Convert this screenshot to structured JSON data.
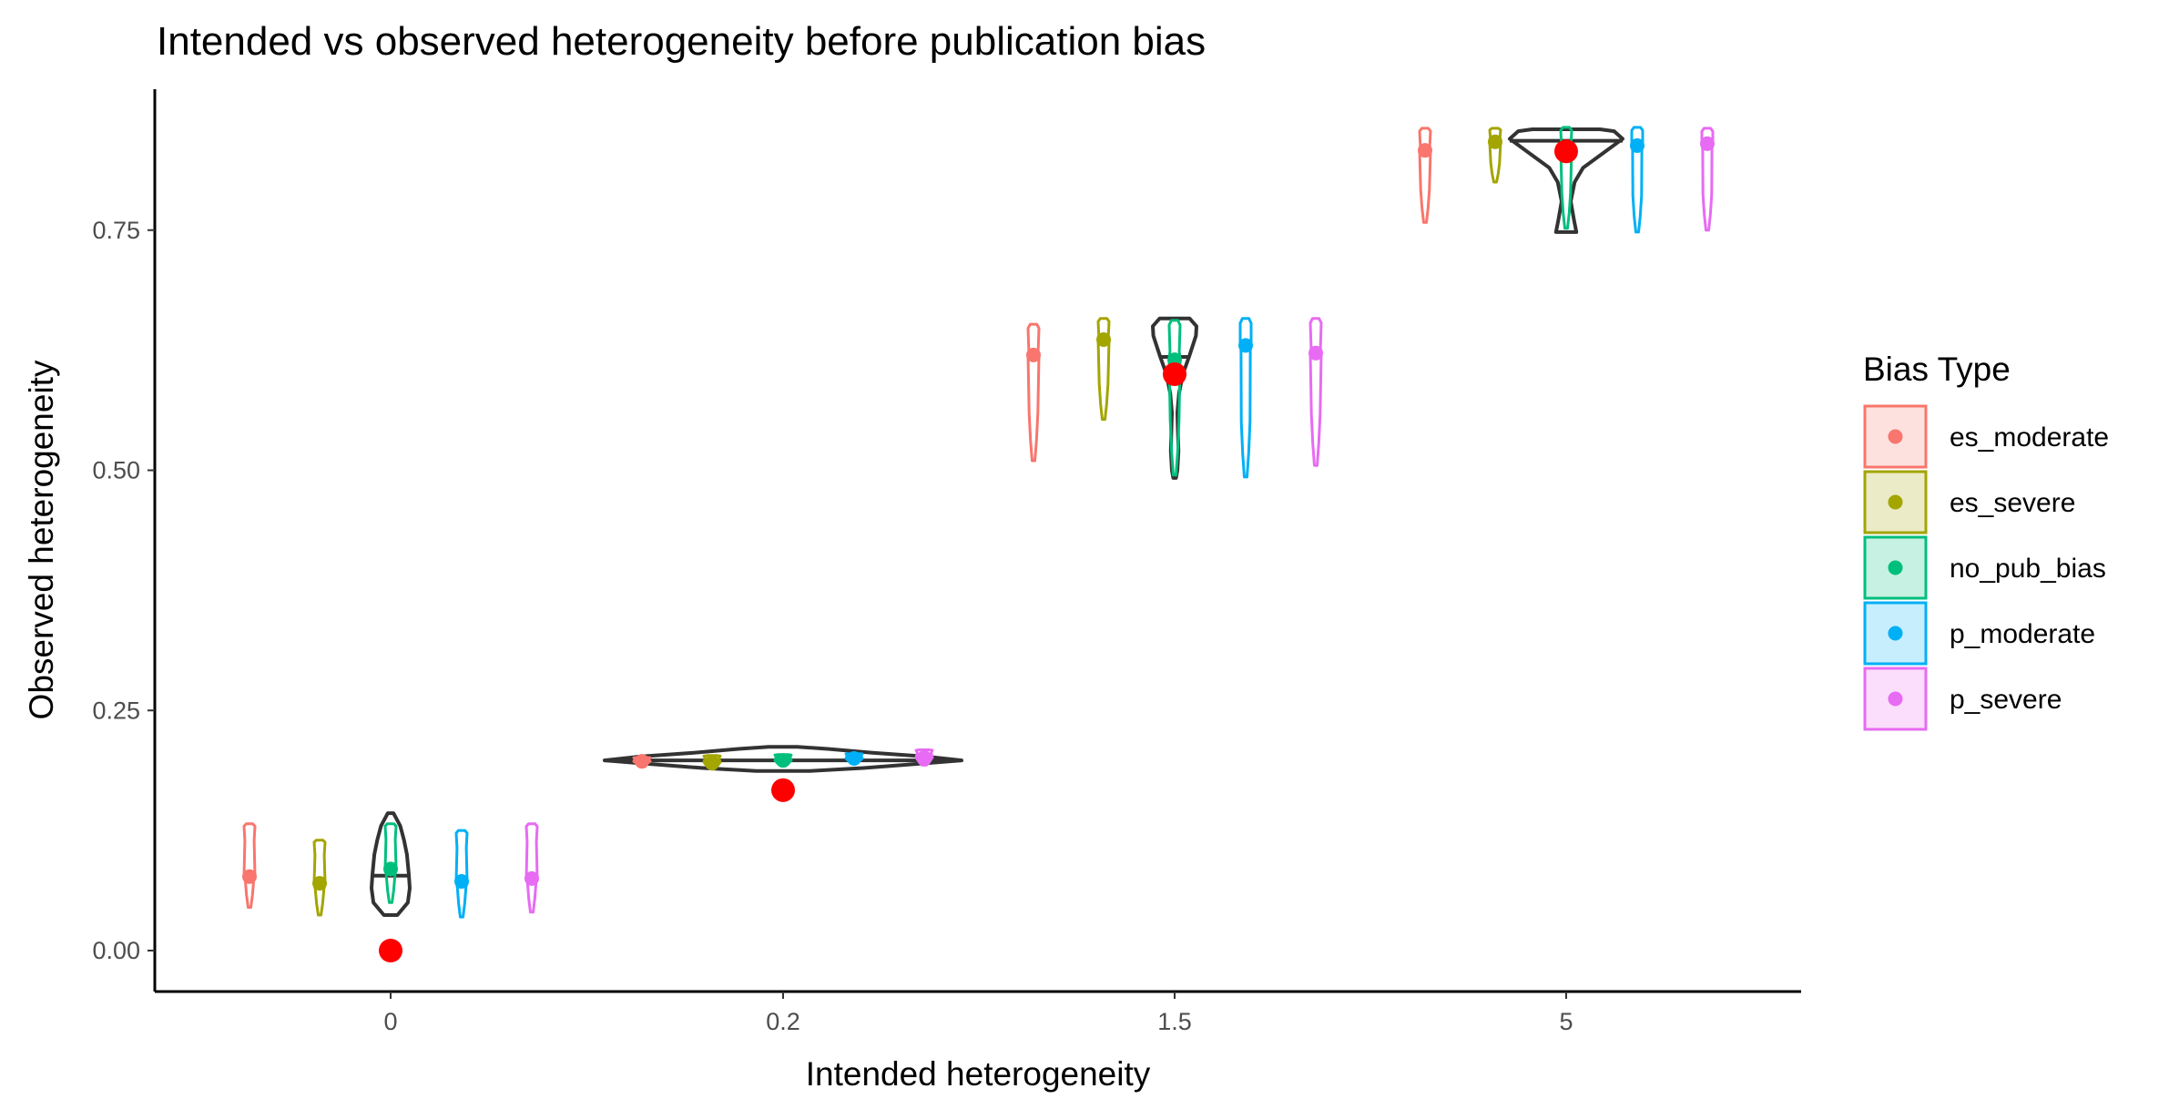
{
  "chart_data": {
    "type": "violin",
    "title": "Intended vs observed heterogeneity before publication bias",
    "xlabel": "Intended heterogeneity",
    "ylabel": "Observed heterogeneity",
    "categories": [
      "0",
      "0.2",
      "1.5",
      "5"
    ],
    "yticks": [
      "0.00",
      "0.25",
      "0.50",
      "0.75"
    ],
    "ylim": [
      -0.04,
      0.89
    ],
    "legend": {
      "title": "Bias Type",
      "position": "right"
    },
    "grid": false,
    "overall": {
      "name": "",
      "color": "#333333",
      "violins": [
        {
          "min": 0.037,
          "max": 0.143,
          "median": 0.078,
          "profile": [
            [
              0.037,
              0.35
            ],
            [
              0.05,
              0.9
            ],
            [
              0.065,
              1.0
            ],
            [
              0.08,
              0.95
            ],
            [
              0.1,
              0.85
            ],
            [
              0.115,
              0.7
            ],
            [
              0.13,
              0.5
            ],
            [
              0.143,
              0.15
            ]
          ]
        },
        {
          "min": 0.187,
          "max": 0.212,
          "median": 0.198,
          "profile": [
            [
              0.187,
              0.15
            ],
            [
              0.19,
              0.45
            ],
            [
              0.195,
              0.8
            ],
            [
              0.198,
              1.0
            ],
            [
              0.202,
              0.8
            ],
            [
              0.206,
              0.5
            ],
            [
              0.21,
              0.25
            ],
            [
              0.212,
              0.08
            ]
          ]
        },
        {
          "min": 0.492,
          "max": 0.658,
          "median": 0.618,
          "profile": [
            [
              0.492,
              0.05
            ],
            [
              0.5,
              0.1
            ],
            [
              0.52,
              0.14
            ],
            [
              0.54,
              0.12
            ],
            [
              0.56,
              0.1
            ],
            [
              0.58,
              0.16
            ],
            [
              0.6,
              0.3
            ],
            [
              0.62,
              0.55
            ],
            [
              0.64,
              0.78
            ],
            [
              0.65,
              0.8
            ],
            [
              0.658,
              0.55
            ]
          ]
        },
        {
          "min": 0.748,
          "max": 0.855,
          "median": 0.843,
          "profile": [
            [
              0.748,
              0.18
            ],
            [
              0.76,
              0.14
            ],
            [
              0.78,
              0.08
            ],
            [
              0.8,
              0.15
            ],
            [
              0.815,
              0.3
            ],
            [
              0.83,
              0.65
            ],
            [
              0.845,
              1.0
            ],
            [
              0.853,
              0.85
            ],
            [
              0.855,
              0.6
            ]
          ]
        }
      ]
    },
    "intended_points": {
      "name": "",
      "color": "#ff0000",
      "values": [
        0.0,
        0.167,
        0.6,
        0.832
      ]
    },
    "series": [
      {
        "name": "es_moderate",
        "color": "#F8766D",
        "means": [
          0.077,
          0.197,
          0.62,
          0.833
        ],
        "ranges": [
          [
            0.045,
            0.132
          ],
          [
            0.193,
            0.201
          ],
          [
            0.51,
            0.652
          ],
          [
            0.758,
            0.856
          ]
        ]
      },
      {
        "name": "es_severe",
        "color": "#A3A500",
        "means": [
          0.07,
          0.196,
          0.636,
          0.842
        ],
        "ranges": [
          [
            0.037,
            0.115
          ],
          [
            0.189,
            0.203
          ],
          [
            0.553,
            0.658
          ],
          [
            0.8,
            0.856
          ]
        ]
      },
      {
        "name": "no_pub_bias",
        "color": "#00BF7D",
        "means": [
          0.085,
          0.198,
          0.615,
          0.836
        ],
        "ranges": [
          [
            0.05,
            0.132
          ],
          [
            0.192,
            0.204
          ],
          [
            0.495,
            0.656
          ],
          [
            0.752,
            0.857
          ]
        ]
      },
      {
        "name": "p_moderate",
        "color": "#00B0F6",
        "means": [
          0.072,
          0.2,
          0.63,
          0.838
        ],
        "ranges": [
          [
            0.035,
            0.125
          ],
          [
            0.195,
            0.205
          ],
          [
            0.493,
            0.658
          ],
          [
            0.748,
            0.857
          ]
        ]
      },
      {
        "name": "p_severe",
        "color": "#E76BF3",
        "means": [
          0.075,
          0.201,
          0.622,
          0.84
        ],
        "ranges": [
          [
            0.04,
            0.132
          ],
          [
            0.193,
            0.209
          ],
          [
            0.505,
            0.658
          ],
          [
            0.75,
            0.856
          ]
        ]
      }
    ]
  }
}
